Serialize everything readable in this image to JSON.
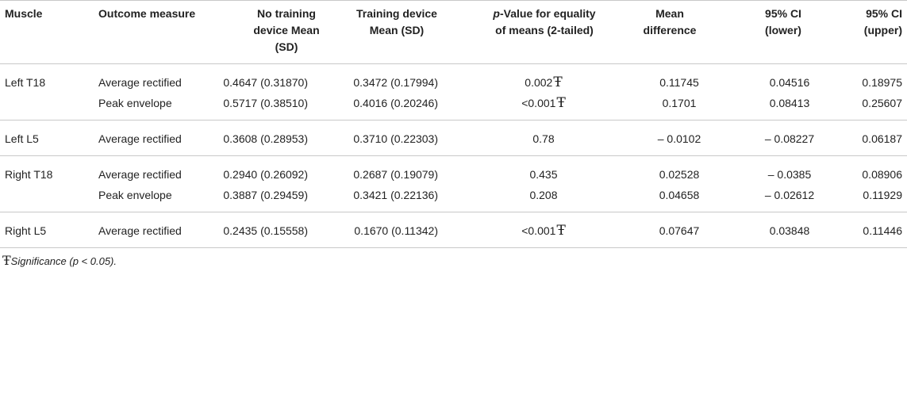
{
  "headers": {
    "muscle": "Muscle",
    "outcome": "Outcome measure",
    "no_training": "No training device Mean (SD)",
    "training": "Training device Mean (SD)",
    "pvalue_prefix": "p",
    "pvalue_rest": "-Value for equality of means (2-tailed)",
    "mean_diff": "Mean difference",
    "ci_lower": "95% CI (lower)",
    "ci_upper": "95% CI (upper)"
  },
  "significance_symbol": "Ŧ",
  "rows": [
    {
      "muscle": "Left T18",
      "outcome": "Average rectified",
      "no_training": "0.4647 (0.31870)",
      "training": "0.3472 (0.17994)",
      "p": "0.002",
      "sig": true,
      "mean_diff": "0.11745",
      "ci_lower": "0.04516",
      "ci_upper": "0.18975"
    },
    {
      "muscle": "",
      "outcome": "Peak envelope",
      "no_training": "0.5717 (0.38510)",
      "training": "0.4016 (0.20246)",
      "p": "<0.001",
      "sig": true,
      "mean_diff": "0.1701",
      "ci_lower": "0.08413",
      "ci_upper": "0.25607"
    },
    {
      "muscle": "Left L5",
      "outcome": "Average rectified",
      "no_training": "0.3608 (0.28953)",
      "training": "0.3710 (0.22303)",
      "p": "0.78",
      "sig": false,
      "mean_diff": "– 0.0102",
      "ci_lower": "– 0.08227",
      "ci_upper": "0.06187"
    },
    {
      "muscle": "Right T18",
      "outcome": "Average rectified",
      "no_training": "0.2940 (0.26092)",
      "training": "0.2687 (0.19079)",
      "p": "0.435",
      "sig": false,
      "mean_diff": "0.02528",
      "ci_lower": "– 0.0385",
      "ci_upper": "0.08906"
    },
    {
      "muscle": "",
      "outcome": "Peak envelope",
      "no_training": "0.3887 (0.29459)",
      "training": "0.3421 (0.22136)",
      "p": "0.208",
      "sig": false,
      "mean_diff": "0.04658",
      "ci_lower": "– 0.02612",
      "ci_upper": "0.11929"
    },
    {
      "muscle": "Right L5",
      "outcome": "Average rectified",
      "no_training": "0.2435 (0.15558)",
      "training": "0.1670 (0.11342)",
      "p": "<0.001",
      "sig": true,
      "mean_diff": "0.07647",
      "ci_lower": "0.03848",
      "ci_upper": "0.11446"
    }
  ],
  "footnote": "Significance (p < 0.05)."
}
